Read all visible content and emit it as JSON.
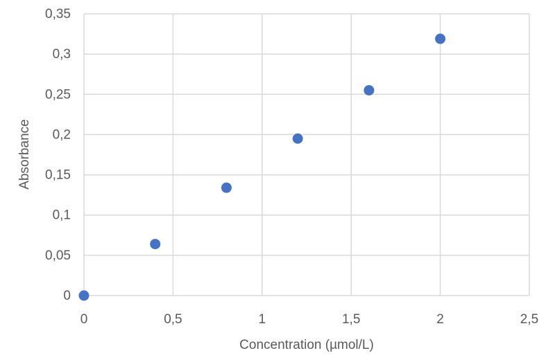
{
  "chart_data": {
    "type": "scatter",
    "title": "",
    "xlabel": "Concentration (µmol/L)",
    "ylabel": "Absorbance",
    "xlim": [
      0,
      2.5
    ],
    "ylim": [
      0,
      0.35
    ],
    "x_ticks": [
      {
        "value": 0,
        "label": "0"
      },
      {
        "value": 0.5,
        "label": "0,5"
      },
      {
        "value": 1,
        "label": "1"
      },
      {
        "value": 1.5,
        "label": "1,5"
      },
      {
        "value": 2,
        "label": "2"
      },
      {
        "value": 2.5,
        "label": "2,5"
      }
    ],
    "y_ticks": [
      {
        "value": 0,
        "label": "0"
      },
      {
        "value": 0.05,
        "label": "0,05"
      },
      {
        "value": 0.1,
        "label": "0,1"
      },
      {
        "value": 0.15,
        "label": "0,15"
      },
      {
        "value": 0.2,
        "label": "0,2"
      },
      {
        "value": 0.25,
        "label": "0,25"
      },
      {
        "value": 0.3,
        "label": "0,3"
      },
      {
        "value": 0.35,
        "label": "0,35"
      }
    ],
    "grid": true,
    "legend": "none",
    "series": [
      {
        "color": "#4472c4",
        "points": [
          {
            "x": 0,
            "y": 0
          },
          {
            "x": 0.4,
            "y": 0.064
          },
          {
            "x": 0.8,
            "y": 0.134
          },
          {
            "x": 1.2,
            "y": 0.195
          },
          {
            "x": 1.6,
            "y": 0.255
          },
          {
            "x": 2.0,
            "y": 0.319
          }
        ]
      }
    ]
  }
}
